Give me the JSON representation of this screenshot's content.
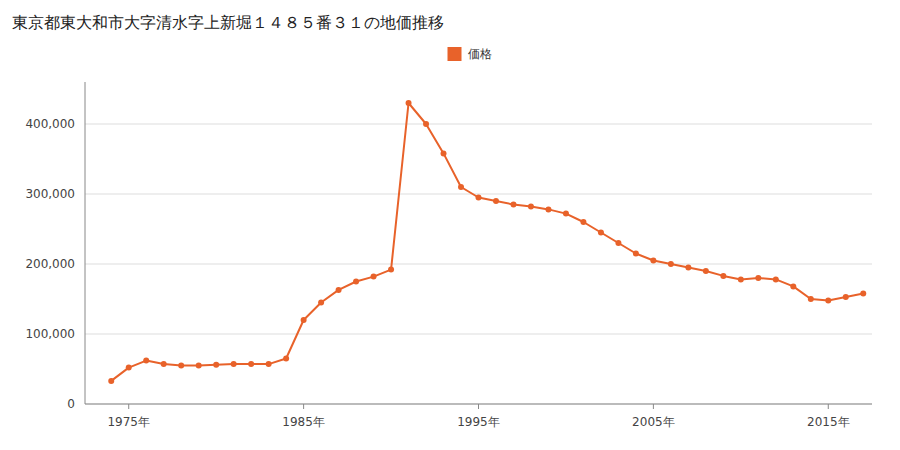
{
  "chart_data": {
    "type": "line",
    "title": "東京都東大和市大字清水字上新堀１４８５番３１の地価推移",
    "x": [
      1974,
      1975,
      1976,
      1977,
      1978,
      1979,
      1980,
      1981,
      1982,
      1983,
      1984,
      1985,
      1986,
      1987,
      1988,
      1989,
      1990,
      1991,
      1992,
      1993,
      1994,
      1995,
      1996,
      1997,
      1998,
      1999,
      2000,
      2001,
      2002,
      2003,
      2004,
      2005,
      2006,
      2007,
      2008,
      2009,
      2010,
      2011,
      2012,
      2013,
      2014,
      2015,
      2016,
      2017
    ],
    "series": [
      {
        "name": "価格",
        "color": "#e8622a",
        "marker": "circle",
        "line_style": "solid",
        "values": [
          33000,
          52000,
          62000,
          57000,
          55000,
          55000,
          56000,
          57000,
          57000,
          57000,
          65000,
          120000,
          145000,
          163000,
          175000,
          182000,
          192000,
          430000,
          400000,
          358000,
          310000,
          295000,
          290000,
          285000,
          282000,
          278000,
          272000,
          260000,
          245000,
          230000,
          215000,
          205000,
          200000,
          195000,
          190000,
          183000,
          178000,
          180000,
          178000,
          168000,
          150000,
          148000,
          153000,
          158000
        ]
      }
    ],
    "xlim": [
      1972.5,
      2017.5
    ],
    "xticks": [
      {
        "value": 1975,
        "label": "1975年"
      },
      {
        "value": 1985,
        "label": "1985年"
      },
      {
        "value": 1995,
        "label": "1995年"
      },
      {
        "value": 2005,
        "label": "2005年"
      },
      {
        "value": 2015,
        "label": "2015年"
      }
    ],
    "ylim": [
      0,
      460000
    ],
    "yticks": [
      0,
      {
        "value": 100000,
        "label": "100,000"
      },
      {
        "value": 200000,
        "label": "200,000"
      },
      {
        "value": 300000,
        "label": "300,000"
      },
      {
        "value": 400000,
        "label": "400,000"
      }
    ],
    "grid": true,
    "legend": "top"
  }
}
